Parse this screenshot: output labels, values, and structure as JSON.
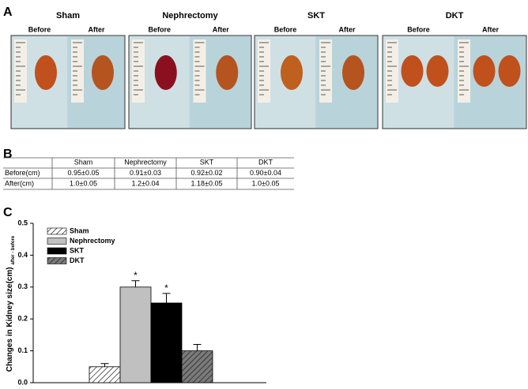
{
  "panel_labels": [
    "A",
    "B",
    "C"
  ],
  "photos": [
    {
      "title": "Sham",
      "before": "Before",
      "after": "After"
    },
    {
      "title": "Nephrectomy",
      "before": "Before",
      "after": "After"
    },
    {
      "title": "SKT",
      "before": "Before",
      "after": "After"
    },
    {
      "title": "DKT",
      "before": "Before",
      "after": "After"
    }
  ],
  "table": {
    "header": [
      "Sham",
      "Nephrectomy",
      "SKT",
      "DKT"
    ],
    "rows": [
      [
        "Before(cm)",
        "0.95±0.05",
        "0.91±0.03",
        "0.92±0.02",
        "0.90±0.04"
      ],
      [
        "After(cm)",
        "1.0±0.05",
        "1.2±0.04",
        "1.18±0.05",
        "1.0±0.05"
      ]
    ]
  },
  "chart_data": {
    "type": "bar",
    "ylabel": "Changes in Kidney size(cm)",
    "ylabel_subscript": "after - before",
    "ylim": [
      0,
      0.5
    ],
    "yticks": [
      {
        "value": 0,
        "label": "0.0"
      },
      0.1,
      0.2,
      0.3,
      0.4,
      0.5
    ],
    "series": [
      {
        "name": "Sham",
        "color": "#ffffff",
        "pattern": "hatch",
        "values": [
          0.05
        ],
        "errors": [
          0.01
        ]
      },
      {
        "name": "Nephrectomy",
        "color": "#c0c0c0",
        "pattern": "solid",
        "values": [
          0.3
        ],
        "errors": [
          0.02
        ],
        "marker": "*"
      },
      {
        "name": "SKT",
        "color": "#000000",
        "pattern": "solid",
        "values": [
          0.25
        ],
        "errors": [
          0.03
        ],
        "marker": "*"
      },
      {
        "name": "DKT",
        "color": "#7a7a7a",
        "pattern": "hatch",
        "values": [
          0.1
        ],
        "errors": [
          0.02
        ]
      }
    ]
  }
}
